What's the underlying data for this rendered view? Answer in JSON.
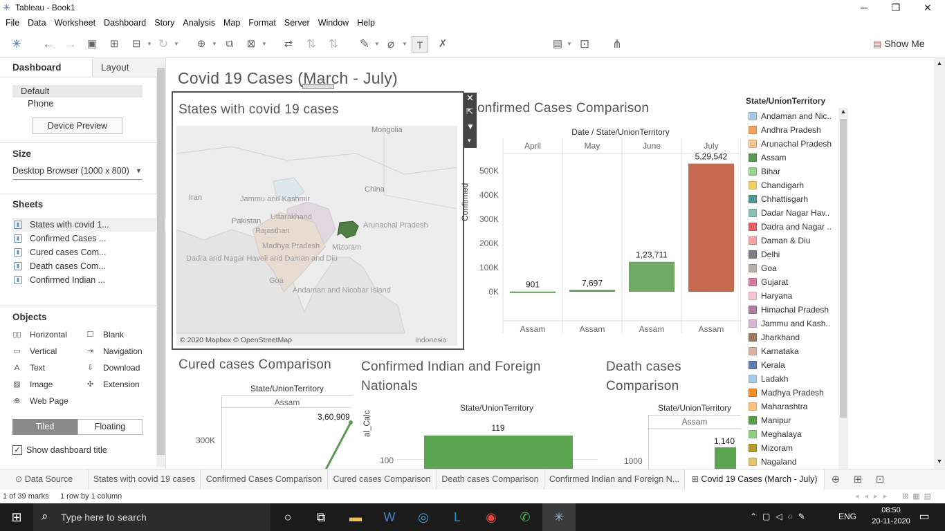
{
  "window": {
    "title": "Tableau - Book1",
    "min": "─",
    "max": "❐",
    "close": "✕"
  },
  "menu": [
    "File",
    "Data",
    "Worksheet",
    "Dashboard",
    "Story",
    "Analysis",
    "Map",
    "Format",
    "Server",
    "Window",
    "Help"
  ],
  "toolbar": {
    "show_me": "Show Me"
  },
  "left": {
    "tab_dashboard": "Dashboard",
    "tab_layout": "Layout",
    "device_default": "Default",
    "device_phone": "Phone",
    "device_preview": "Device Preview",
    "size_title": "Size",
    "size_value": "Desktop Browser (1000 x 800)",
    "sheets_title": "Sheets",
    "sheets": [
      "States with covid 1...",
      "Confirmed Cases ...",
      "Cured cases Com...",
      "Death cases Com...",
      "Confirmed Indian ..."
    ],
    "objects_title": "Objects",
    "objects": [
      "Horizontal",
      "Blank",
      "Vertical",
      "Navigation",
      "Text",
      "Download",
      "Image",
      "Extension",
      "Web Page"
    ],
    "tiled": "Tiled",
    "floating": "Floating",
    "show_title": "Show dashboard title"
  },
  "dashboard": {
    "title": "Covid 19 Cases (March - July)",
    "map": {
      "title": "States with covid 19 cases",
      "labels": {
        "mongolia": "Mongolia",
        "iran": "Iran",
        "china": "China",
        "pakistan": "Pakistan",
        "jk": "Jammu and Kashmir",
        "uttarakhand": "Uttarakhand",
        "rajasthan": "Rajasthan",
        "mp": "Madhya Pradesh",
        "mizoram": "Mizoram",
        "dadra": "Dadra and Nagar Haveli and Daman and Diu",
        "goa": "Goa",
        "andaman": "Andaman and Nicobar Island",
        "arunachal": "Arunachal Pradesh",
        "indonesia": "Indonesia"
      },
      "attribution": "© 2020 Mapbox © OpenStreetMap"
    },
    "confirmed_title": "Confirmed Cases Comparison",
    "cured_title": "Cured cases Comparison",
    "nationals_title": "Confirmed Indian and Foreign Nationals",
    "death_title": "Death cases Comparison",
    "legend_title": "State/UnionTerritory"
  },
  "chart_data": [
    {
      "type": "bar",
      "title": "Confirmed Cases Comparison",
      "header": "Date / State/UnionTerritory",
      "ylabel": "Confirmed",
      "categories": [
        "April",
        "May",
        "June",
        "July"
      ],
      "sub_labels": [
        "Assam",
        "Assam",
        "Assam",
        "Assam"
      ],
      "values": [
        901,
        7697,
        123711,
        529542
      ],
      "value_labels": [
        "901",
        "7,697",
        "1,23,711",
        "5,29,542"
      ],
      "colors": [
        "#5b9a55",
        "#5b9a55",
        "#72a866",
        "#c5694f"
      ],
      "ylim": [
        0,
        560000
      ],
      "yticks": [
        0,
        100000,
        200000,
        300000,
        400000,
        500000
      ],
      "ytick_labels": [
        "0K",
        "100K",
        "200K",
        "300K",
        "400K",
        "500K"
      ]
    },
    {
      "type": "line",
      "title": "Cured cases Comparison",
      "header": "State/UnionTerritory",
      "categories": [
        "Assam"
      ],
      "value_label": "3,60,909",
      "values": [
        360909
      ],
      "ytick_labels": [
        "300K"
      ]
    },
    {
      "type": "bar",
      "title": "Confirmed Indian and Foreign Nationals",
      "header": "State/UnionTerritory",
      "ylabel": "al_Calc",
      "values": [
        119
      ],
      "value_labels": [
        "119"
      ],
      "ytick_labels": [
        "100"
      ]
    },
    {
      "type": "bar",
      "title": "Death cases Comparison",
      "header": "State/UnionTerritory",
      "categories": [
        "Assam"
      ],
      "values": [
        1140
      ],
      "value_labels": [
        "1,140"
      ],
      "ytick_labels": [
        "1000"
      ]
    }
  ],
  "legend": [
    {
      "name": "Andaman and Nic..",
      "color": "#a8cbe3"
    },
    {
      "name": "Andhra Pradesh",
      "color": "#f5a15a"
    },
    {
      "name": "Arunachal Pradesh",
      "color": "#f9c58f"
    },
    {
      "name": "Assam",
      "color": "#5b9a55"
    },
    {
      "name": "Bihar",
      "color": "#98d08a"
    },
    {
      "name": "Chandigarh",
      "color": "#f2cf63"
    },
    {
      "name": "Chhattisgarh",
      "color": "#4f9a96"
    },
    {
      "name": "Dadar Nagar Hav..",
      "color": "#8bc3bb"
    },
    {
      "name": "Dadra and Nagar ..",
      "color": "#e2646a"
    },
    {
      "name": "Daman & Diu",
      "color": "#f6a4a2"
    },
    {
      "name": "Delhi",
      "color": "#7d7d7d"
    },
    {
      "name": "Goa",
      "color": "#bab0ac"
    },
    {
      "name": "Gujarat",
      "color": "#d77aa6"
    },
    {
      "name": "Haryana",
      "color": "#f7c6d6"
    },
    {
      "name": "Himachal Pradesh",
      "color": "#b07ea1"
    },
    {
      "name": "Jammu and Kash..",
      "color": "#d9b3d3"
    },
    {
      "name": "Jharkhand",
      "color": "#9c7762"
    },
    {
      "name": "Karnataka",
      "color": "#d7b5a6"
    },
    {
      "name": "Kerala",
      "color": "#5c7fb0"
    },
    {
      "name": "Ladakh",
      "color": "#a8cbe3"
    },
    {
      "name": "Madhya Pradesh",
      "color": "#f28e2b"
    },
    {
      "name": "Maharashtra",
      "color": "#ffbe7d"
    },
    {
      "name": "Manipur",
      "color": "#59a14f"
    },
    {
      "name": "Meghalaya",
      "color": "#8cd17d"
    },
    {
      "name": "Mizoram",
      "color": "#b6992d"
    },
    {
      "name": "Nagaland",
      "color": "#e0c56a"
    }
  ],
  "tabs": [
    "Data Source",
    "States with covid 19 cases",
    "Confirmed Cases Comparison",
    "Cured cases Comparison",
    "Death cases Comparison",
    "Confirmed Indian and Foreign N...",
    "Covid 19 Cases (March - July)"
  ],
  "status": {
    "marks": "1 of 39 marks",
    "rows": "1 row by 1 column"
  },
  "taskbar": {
    "search": "Type here to search",
    "lang": "ENG",
    "time": "08:50",
    "date": "20-11-2020"
  }
}
